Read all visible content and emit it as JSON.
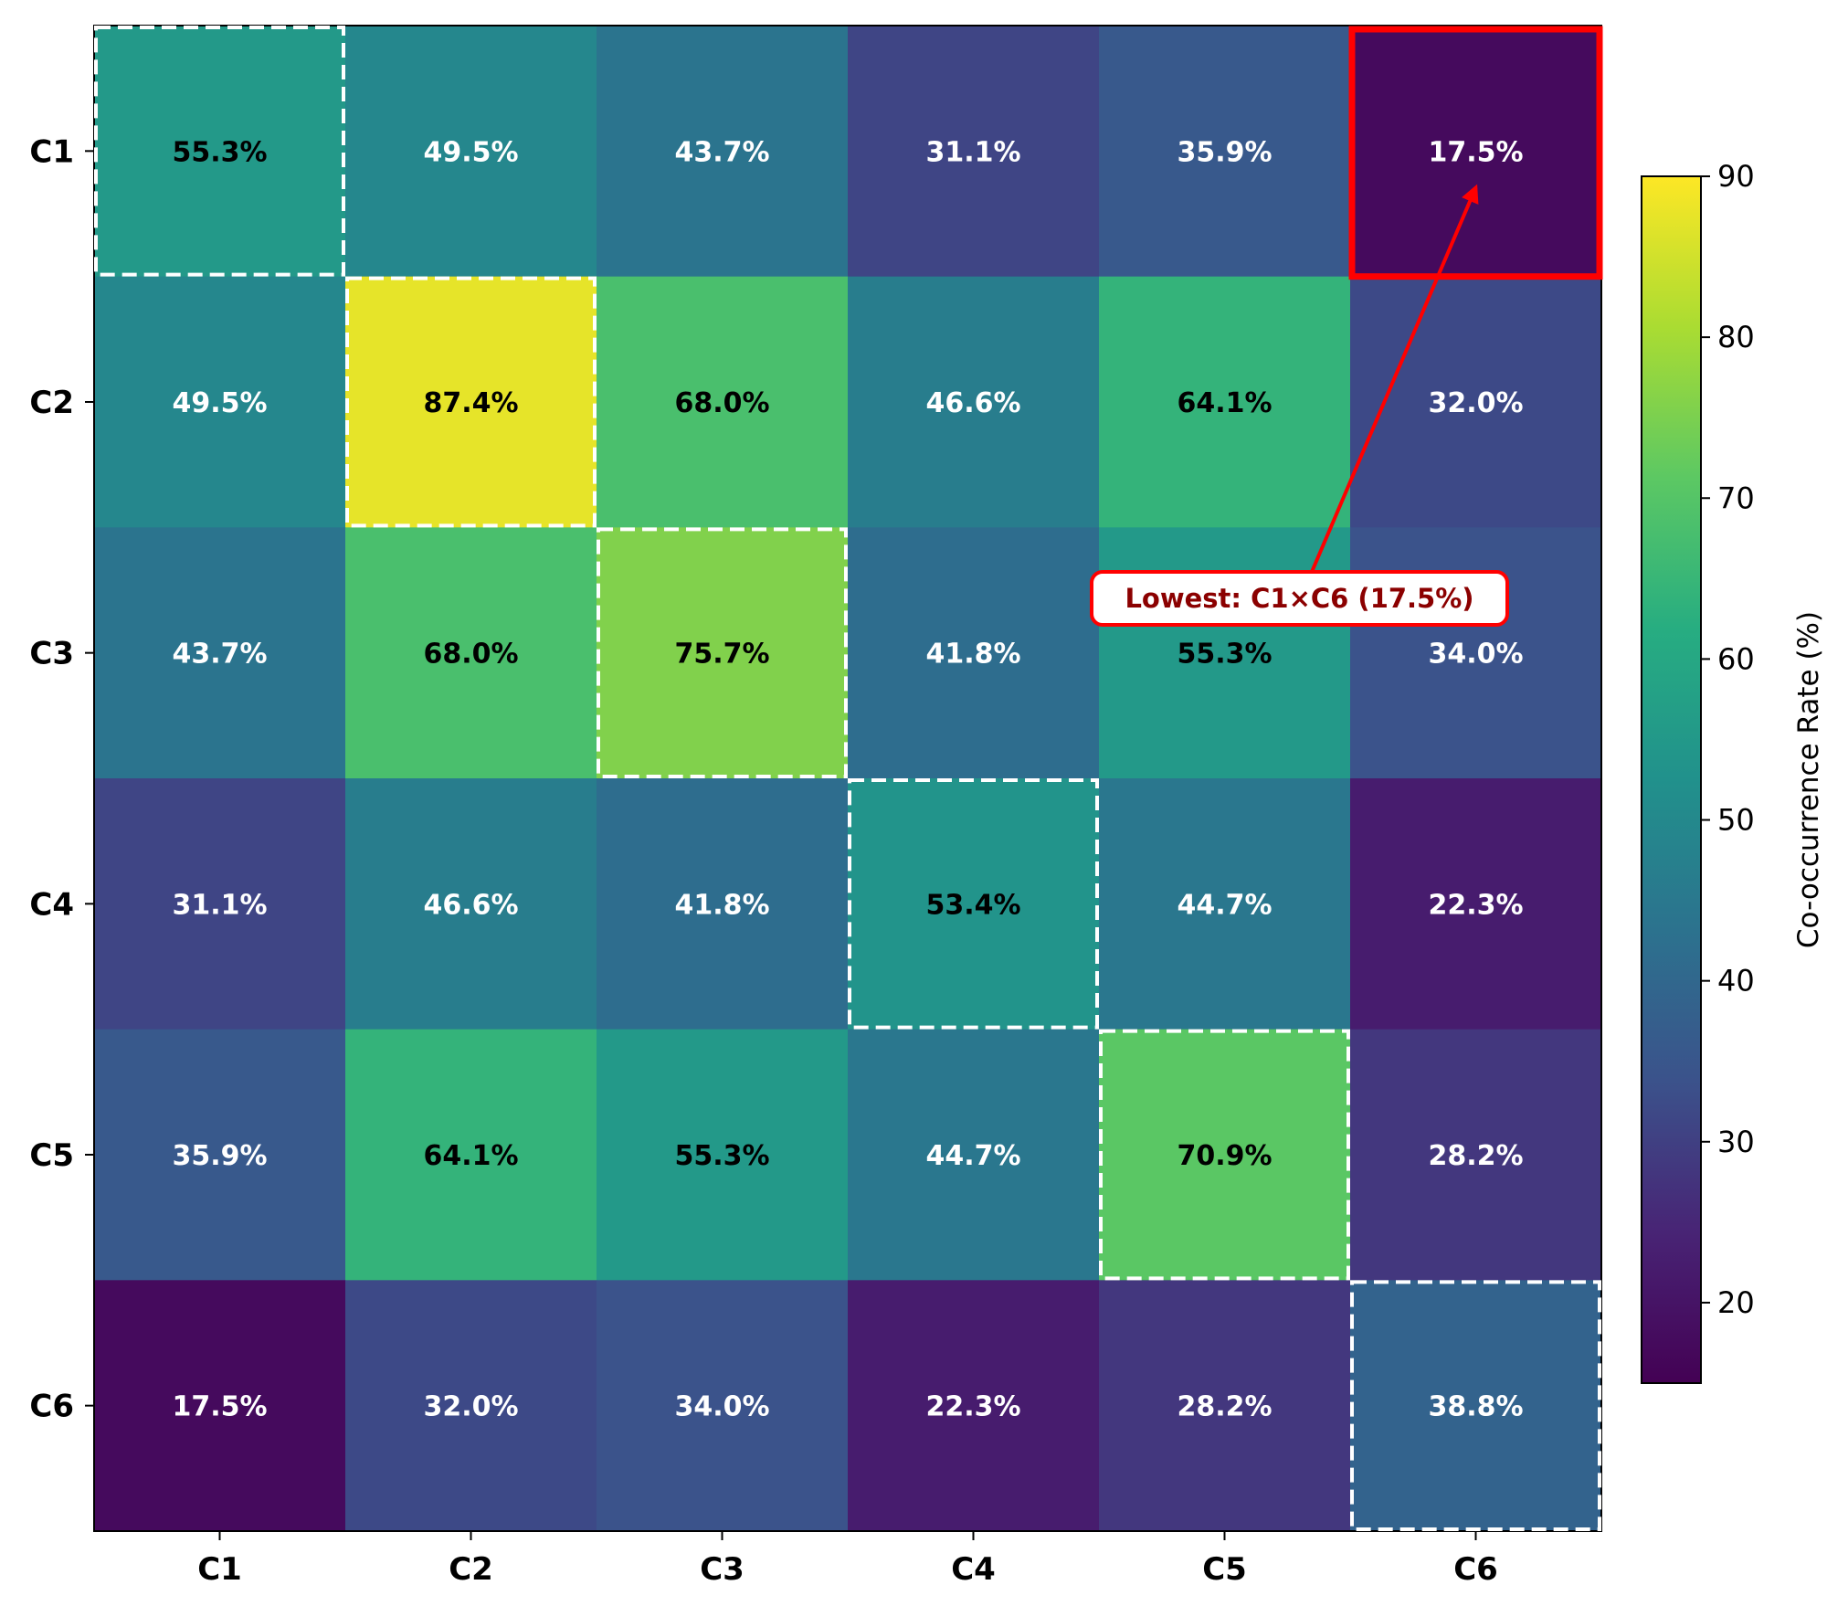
{
  "chart_data": {
    "type": "heatmap",
    "title": "",
    "xlabel": "",
    "ylabel": "",
    "x_categories": [
      "C1",
      "C2",
      "C3",
      "C4",
      "C5",
      "C6"
    ],
    "y_categories": [
      "C1",
      "C2",
      "C3",
      "C4",
      "C5",
      "C6"
    ],
    "values": [
      [
        55.3,
        49.5,
        43.7,
        31.1,
        35.9,
        17.5
      ],
      [
        49.5,
        87.4,
        68.0,
        46.6,
        64.1,
        32.0
      ],
      [
        43.7,
        68.0,
        75.7,
        41.8,
        55.3,
        34.0
      ],
      [
        31.1,
        46.6,
        41.8,
        53.4,
        44.7,
        22.3
      ],
      [
        35.9,
        64.1,
        55.3,
        44.7,
        70.9,
        28.2
      ],
      [
        17.5,
        32.0,
        34.0,
        22.3,
        28.2,
        38.8
      ]
    ],
    "value_format_suffix": "%",
    "colormap": "viridis",
    "color_range": [
      15,
      90
    ],
    "colorbar": {
      "label": "Co-occurrence Rate (%)",
      "ticks": [
        20,
        30,
        40,
        50,
        60,
        70,
        80,
        90
      ],
      "placement": "right"
    },
    "diagonal_highlight": {
      "style": "dashed",
      "color": "#ffffff"
    },
    "highlight_cell": {
      "row": 0,
      "col": 5,
      "color": "#ff0000"
    },
    "annotation": {
      "text": "Lowest: C1×C6 (17.5%)",
      "target_row": 0,
      "target_col": 5,
      "text_color": "#8b0000",
      "border_color": "#ff0000"
    },
    "text_threshold_dark": 50
  }
}
